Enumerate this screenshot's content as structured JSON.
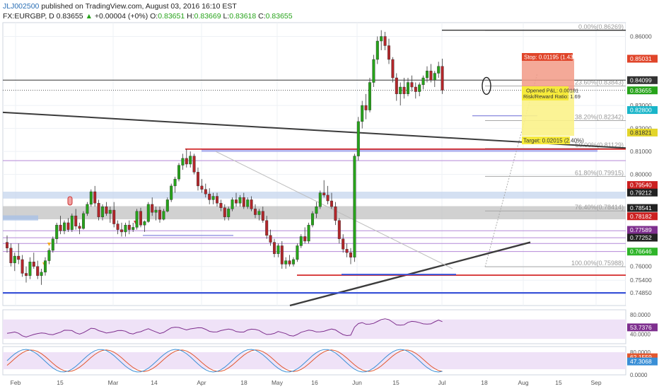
{
  "header": {
    "author": "JLJ002500",
    "published": "published on TradingView.com, August 03, 2016 16:10 EST",
    "symbol": "FX:EURGBP, D",
    "last": "0.83655",
    "arrow": "▲",
    "change": "+0.00004 (+0%)",
    "o_label": "O:",
    "o_value": "0.83651",
    "h_label": "H:",
    "h_value": "0.83669",
    "l_label": "L:",
    "l_value": "0.83618",
    "c_label": "C:",
    "c_value": "0.83655"
  },
  "colors": {
    "up": "#26a31a",
    "down": "#b2262a",
    "accent": "#2a6fb5",
    "rsi": "#7e2f8e",
    "stoch_k": "#3a8fd6",
    "stoch_d": "#e2572f"
  },
  "price_axis": {
    "range": [
      0.743,
      0.866
    ],
    "ticks": [
      "0.86000",
      "0.83000",
      "0.82000",
      "0.81000",
      "0.80000",
      "0.76000",
      "0.75400",
      "0.74850"
    ]
  },
  "badges": [
    {
      "value": "0.85031",
      "color": "#e0452a"
    },
    {
      "value": "0.84099",
      "color": "#333333"
    },
    {
      "value": "0.83655",
      "color": "#26a31a"
    },
    {
      "value": "0.82800",
      "color": "#19b5c9"
    },
    {
      "value": "0.81821",
      "color": "#e3d52b"
    },
    {
      "value": "0.79540",
      "color": "#cc1f1f"
    },
    {
      "value": "0.79212",
      "color": "#222222"
    },
    {
      "value": "0.78541",
      "color": "#222222"
    },
    {
      "value": "0.78182",
      "color": "#cc1f1f"
    },
    {
      "value": "0.77589",
      "color": "#7e2f8e"
    },
    {
      "value": "0.77252",
      "color": "#222222"
    },
    {
      "value": "0.76646",
      "color": "#2fb52a"
    }
  ],
  "fib_labels": [
    {
      "text": "0.00%",
      "value": "(0.86269)"
    },
    {
      "text": "23.60%",
      "value": "(0.83843)"
    },
    {
      "text": "38.20%",
      "value": "(0.82342)"
    },
    {
      "text": "50.00%",
      "value": "(0.81129)"
    },
    {
      "text": "61.80%",
      "value": "(0.79915)"
    },
    {
      "text": "76.40%",
      "value": "(0.78414)"
    },
    {
      "text": "100.00%",
      "value": "(0.75988)"
    }
  ],
  "position": {
    "stop": "Stop: 0.01195 (1.43%)",
    "opened": "Opened P&L: 0.00181",
    "risk_reward": "Risk/Reward Ratio: 1.69",
    "target": "Target: 0.02015 (2.40%)"
  },
  "rsi": {
    "value": "53.7376",
    "ticks": [
      "80.0000",
      "40.0000"
    ],
    "range": [
      20,
      90
    ]
  },
  "stoch": {
    "k_value": "62.1559",
    "d_value": "47.3068",
    "ticks": [
      "80.0000",
      "0.0000"
    ],
    "range": [
      0,
      100
    ]
  },
  "x_axis": {
    "labels": [
      "Feb",
      "15",
      "Mar",
      "14",
      "Apr",
      "18",
      "May",
      "16",
      "Jun",
      "15",
      "Jul",
      "18",
      "Aug",
      "15",
      "Sep"
    ]
  },
  "chart_data": {
    "type": "candlestick",
    "title": "",
    "xlabel": "",
    "ylabel": "",
    "ylim": [
      0.743,
      0.866
    ],
    "grid": true,
    "candles": [
      [
        0.7705,
        0.7735,
        0.766,
        0.768
      ],
      [
        0.768,
        0.77,
        0.76,
        0.7615
      ],
      [
        0.7615,
        0.766,
        0.758,
        0.7645
      ],
      [
        0.7645,
        0.77,
        0.761,
        0.763
      ],
      [
        0.763,
        0.765,
        0.7555,
        0.757
      ],
      [
        0.757,
        0.76,
        0.753,
        0.756
      ],
      [
        0.756,
        0.764,
        0.7545,
        0.762
      ],
      [
        0.762,
        0.766,
        0.759,
        0.76
      ],
      [
        0.76,
        0.7625,
        0.7545,
        0.756
      ],
      [
        0.756,
        0.759,
        0.752,
        0.7575
      ],
      [
        0.7575,
        0.764,
        0.756,
        0.7625
      ],
      [
        0.7625,
        0.768,
        0.761,
        0.767
      ],
      [
        0.767,
        0.773,
        0.766,
        0.772
      ],
      [
        0.772,
        0.779,
        0.77,
        0.778
      ],
      [
        0.778,
        0.782,
        0.774,
        0.7755
      ],
      [
        0.7755,
        0.78,
        0.774,
        0.779
      ],
      [
        0.779,
        0.781,
        0.775,
        0.776
      ],
      [
        0.776,
        0.783,
        0.775,
        0.782
      ],
      [
        0.782,
        0.785,
        0.776,
        0.7775
      ],
      [
        0.7775,
        0.779,
        0.774,
        0.7765
      ],
      [
        0.7765,
        0.784,
        0.776,
        0.783
      ],
      [
        0.783,
        0.788,
        0.782,
        0.787
      ],
      [
        0.787,
        0.7935,
        0.786,
        0.7925
      ],
      [
        0.7925,
        0.795,
        0.786,
        0.7875
      ],
      [
        0.7875,
        0.789,
        0.78,
        0.7815
      ],
      [
        0.7815,
        0.787,
        0.78,
        0.786
      ],
      [
        0.786,
        0.788,
        0.782,
        0.783
      ],
      [
        0.783,
        0.786,
        0.779,
        0.7845
      ],
      [
        0.7845,
        0.788,
        0.777,
        0.7785
      ],
      [
        0.7785,
        0.78,
        0.774,
        0.776
      ],
      [
        0.776,
        0.779,
        0.773,
        0.775
      ],
      [
        0.775,
        0.779,
        0.773,
        0.778
      ],
      [
        0.778,
        0.78,
        0.774,
        0.776
      ],
      [
        0.776,
        0.779,
        0.775,
        0.777
      ],
      [
        0.777,
        0.785,
        0.776,
        0.784
      ],
      [
        0.784,
        0.7855,
        0.777,
        0.778
      ],
      [
        0.778,
        0.78,
        0.775,
        0.7795
      ],
      [
        0.7795,
        0.788,
        0.779,
        0.787
      ],
      [
        0.787,
        0.79,
        0.782,
        0.7835
      ],
      [
        0.7835,
        0.786,
        0.78,
        0.7845
      ],
      [
        0.7845,
        0.786,
        0.779,
        0.7805
      ],
      [
        0.7805,
        0.785,
        0.78,
        0.784
      ],
      [
        0.784,
        0.79,
        0.7835,
        0.789
      ],
      [
        0.789,
        0.796,
        0.788,
        0.795
      ],
      [
        0.795,
        0.799,
        0.792,
        0.798
      ],
      [
        0.798,
        0.805,
        0.797,
        0.804
      ],
      [
        0.804,
        0.809,
        0.802,
        0.807
      ],
      [
        0.807,
        0.811,
        0.803,
        0.8045
      ],
      [
        0.8045,
        0.81,
        0.803,
        0.808
      ],
      [
        0.808,
        0.809,
        0.8,
        0.801
      ],
      [
        0.801,
        0.803,
        0.793,
        0.795
      ],
      [
        0.795,
        0.798,
        0.792,
        0.7935
      ],
      [
        0.7935,
        0.796,
        0.79,
        0.7915
      ],
      [
        0.7915,
        0.794,
        0.787,
        0.789
      ],
      [
        0.789,
        0.792,
        0.787,
        0.7905
      ],
      [
        0.7905,
        0.792,
        0.786,
        0.7875
      ],
      [
        0.7875,
        0.789,
        0.784,
        0.7855
      ],
      [
        0.7855,
        0.787,
        0.78,
        0.7815
      ],
      [
        0.7815,
        0.786,
        0.78,
        0.785
      ],
      [
        0.785,
        0.79,
        0.784,
        0.789
      ],
      [
        0.789,
        0.792,
        0.786,
        0.7875
      ],
      [
        0.7875,
        0.791,
        0.786,
        0.79
      ],
      [
        0.79,
        0.792,
        0.785,
        0.786
      ],
      [
        0.786,
        0.79,
        0.785,
        0.789
      ],
      [
        0.789,
        0.7905,
        0.784,
        0.785
      ],
      [
        0.785,
        0.787,
        0.781,
        0.7825
      ],
      [
        0.7825,
        0.785,
        0.78,
        0.784
      ],
      [
        0.784,
        0.786,
        0.779,
        0.78
      ],
      [
        0.78,
        0.782,
        0.772,
        0.7735
      ],
      [
        0.7735,
        0.776,
        0.769,
        0.7705
      ],
      [
        0.7705,
        0.772,
        0.764,
        0.7655
      ],
      [
        0.7655,
        0.77,
        0.764,
        0.769
      ],
      [
        0.769,
        0.771,
        0.759,
        0.761
      ],
      [
        0.761,
        0.764,
        0.759,
        0.7625
      ],
      [
        0.7625,
        0.765,
        0.76,
        0.761
      ],
      [
        0.761,
        0.764,
        0.76,
        0.763
      ],
      [
        0.763,
        0.77,
        0.762,
        0.769
      ],
      [
        0.769,
        0.774,
        0.768,
        0.773
      ],
      [
        0.773,
        0.777,
        0.77,
        0.771
      ],
      [
        0.771,
        0.779,
        0.77,
        0.778
      ],
      [
        0.778,
        0.784,
        0.777,
        0.783
      ],
      [
        0.783,
        0.788,
        0.781,
        0.786
      ],
      [
        0.786,
        0.793,
        0.785,
        0.792
      ],
      [
        0.792,
        0.7975,
        0.79,
        0.791
      ],
      [
        0.791,
        0.795,
        0.787,
        0.7885
      ],
      [
        0.7885,
        0.792,
        0.785,
        0.786
      ],
      [
        0.786,
        0.788,
        0.778,
        0.78
      ],
      [
        0.78,
        0.781,
        0.77,
        0.772
      ],
      [
        0.772,
        0.774,
        0.766,
        0.7675
      ],
      [
        0.7675,
        0.77,
        0.764,
        0.766
      ],
      [
        0.766,
        0.768,
        0.761,
        0.764
      ],
      [
        0.764,
        0.809,
        0.762,
        0.808
      ],
      [
        0.808,
        0.825,
        0.806,
        0.823
      ],
      [
        0.823,
        0.832,
        0.82,
        0.83
      ],
      [
        0.83,
        0.835,
        0.824,
        0.828
      ],
      [
        0.828,
        0.842,
        0.827,
        0.84
      ],
      [
        0.84,
        0.852,
        0.838,
        0.85
      ],
      [
        0.85,
        0.86,
        0.848,
        0.858
      ],
      [
        0.858,
        0.8627,
        0.854,
        0.86
      ],
      [
        0.86,
        0.862,
        0.854,
        0.856
      ],
      [
        0.856,
        0.859,
        0.848,
        0.85
      ],
      [
        0.85,
        0.851,
        0.84,
        0.842
      ],
      [
        0.842,
        0.844,
        0.832,
        0.835
      ],
      [
        0.835,
        0.84,
        0.83,
        0.838
      ],
      [
        0.838,
        0.842,
        0.833,
        0.835
      ],
      [
        0.835,
        0.842,
        0.834,
        0.84
      ],
      [
        0.84,
        0.843,
        0.836,
        0.838
      ],
      [
        0.838,
        0.84,
        0.833,
        0.836
      ],
      [
        0.836,
        0.84,
        0.834,
        0.839
      ],
      [
        0.839,
        0.843,
        0.837,
        0.842
      ],
      [
        0.842,
        0.847,
        0.84,
        0.845
      ],
      [
        0.845,
        0.848,
        0.84,
        0.841
      ],
      [
        0.841,
        0.845,
        0.838,
        0.844
      ],
      [
        0.844,
        0.849,
        0.842,
        0.847
      ],
      [
        0.847,
        0.8503,
        0.835,
        0.8366
      ]
    ]
  }
}
